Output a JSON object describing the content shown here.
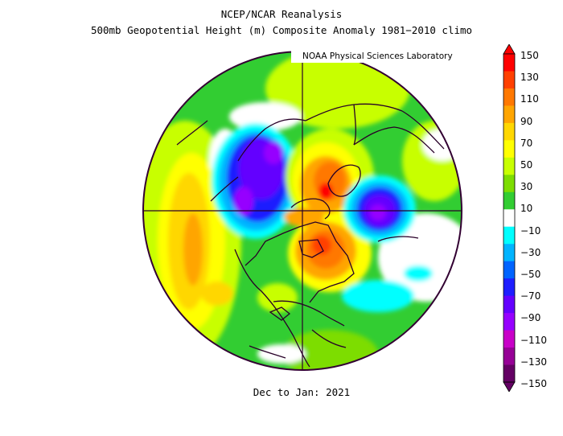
{
  "title_line1": "NCEP/NCAR Reanalysis",
  "title_line2": "500mb Geopotential Height (m) Composite Anomaly 1981−2010 climo",
  "credit": "NOAA Physical Sciences Laboratory",
  "period": "Dec to Jan: 2021",
  "colorbar": {
    "labels": [
      "150",
      "130",
      "110",
      "90",
      "70",
      "50",
      "30",
      "10",
      "−10",
      "−30",
      "−50",
      "−70",
      "−90",
      "−110",
      "−130",
      "−150"
    ],
    "colors": [
      "#ff0000",
      "#ff4000",
      "#ff7800",
      "#ffa500",
      "#ffd700",
      "#ffff00",
      "#c8ff00",
      "#7ddd00",
      "#32cd32",
      "#ffffff",
      "#00ffff",
      "#00b4ff",
      "#0064ff",
      "#1e1eff",
      "#6400ff",
      "#9600ff",
      "#c800c8",
      "#960096",
      "#640064"
    ]
  },
  "colors": {
    "map_outline": "#320032",
    "grid_lines": "#280028"
  }
}
